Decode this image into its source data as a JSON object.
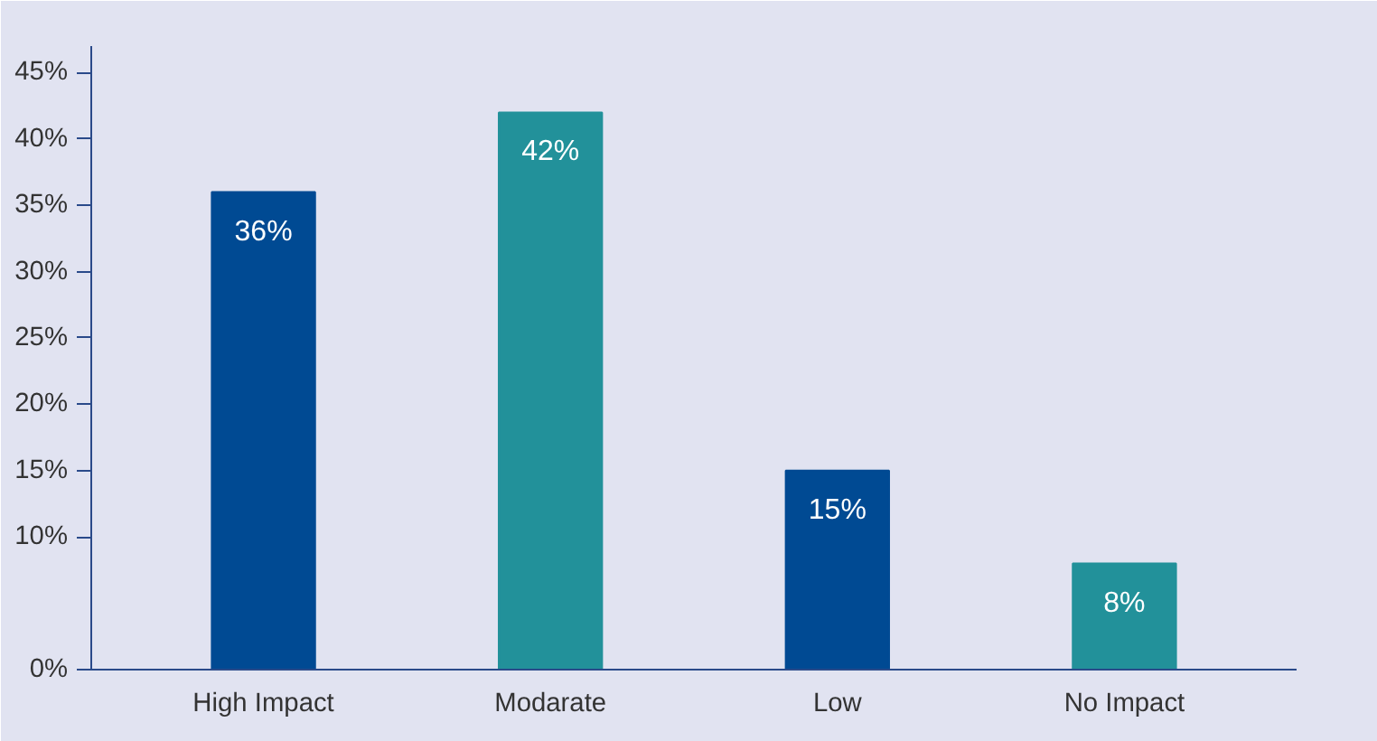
{
  "chart_data": {
    "type": "bar",
    "categories": [
      "High Impact",
      "Modarate",
      "Low",
      "No Impact"
    ],
    "values": [
      36,
      42,
      15,
      8
    ],
    "colors": [
      "#004a93",
      "#22919a",
      "#004a93",
      "#22919a"
    ],
    "ylim": [
      0,
      47
    ],
    "yticks": [
      {
        "value": 0,
        "label": "0%"
      },
      {
        "value": 10,
        "label": "10%"
      },
      {
        "value": 15,
        "label": "15%"
      },
      {
        "value": 20,
        "label": "20%"
      },
      {
        "value": 25,
        "label": "25%"
      },
      {
        "value": 30,
        "label": "30%"
      },
      {
        "value": 35,
        "label": "35%"
      },
      {
        "value": 40,
        "label": "40%"
      },
      {
        "value": 45,
        "label": "45%"
      }
    ],
    "value_labels": [
      "36%",
      "42%",
      "15%",
      "8%"
    ],
    "grid": false
  }
}
